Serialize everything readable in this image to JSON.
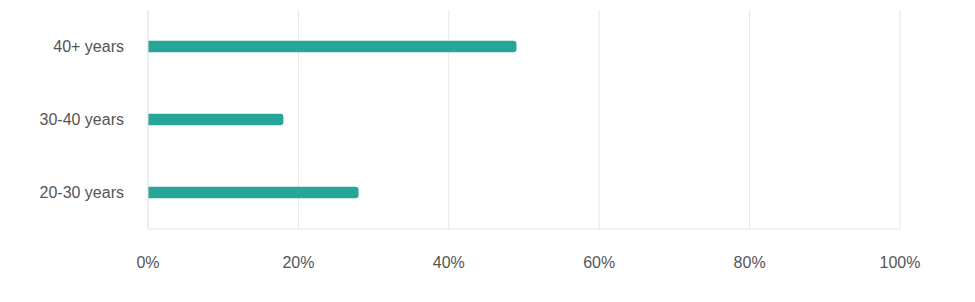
{
  "chart_data": {
    "type": "bar",
    "orientation": "horizontal",
    "categories": [
      "40+ years",
      "30-40 years",
      "20-30 years"
    ],
    "values": [
      49,
      18,
      28
    ],
    "color": "#26a69a",
    "xlim": [
      0,
      100
    ],
    "xticks": [
      {
        "value": 0,
        "label": "0%"
      },
      {
        "value": 20,
        "label": "20%"
      },
      {
        "value": 40,
        "label": "40%"
      },
      {
        "value": 60,
        "label": "60%"
      },
      {
        "value": 80,
        "label": "80%"
      },
      {
        "value": 100,
        "label": "100%"
      }
    ],
    "grid": true
  }
}
